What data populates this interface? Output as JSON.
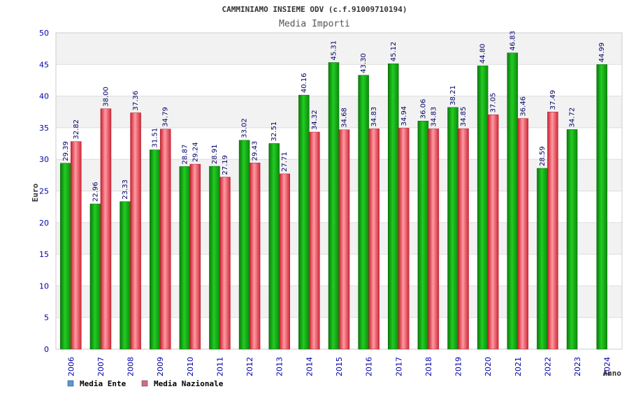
{
  "chart_data": {
    "type": "bar",
    "title": "CAMMINIAMO INSIEME ODV (c.f.91009710194)",
    "subtitle": "Media Importi",
    "xlabel": "Anno",
    "ylabel": "Euro",
    "ylim": [
      0,
      50
    ],
    "yticks": [
      0,
      5,
      10,
      15,
      20,
      25,
      30,
      35,
      40,
      45,
      50
    ],
    "grid": true,
    "legend_position": "bottom-left",
    "categories": [
      "2006",
      "2007",
      "2008",
      "2009",
      "2010",
      "2011",
      "2012",
      "2013",
      "2014",
      "2015",
      "2016",
      "2017",
      "2018",
      "2019",
      "2020",
      "2021",
      "2022",
      "2023",
      "2024"
    ],
    "series": [
      {
        "name": "Media Ente",
        "color": "#1aaa1a",
        "legend_color": "#5599dd",
        "values": [
          29.39,
          22.96,
          23.33,
          31.51,
          28.87,
          28.91,
          33.02,
          32.51,
          40.16,
          45.31,
          43.3,
          45.12,
          36.06,
          38.21,
          44.8,
          46.83,
          28.59,
          34.72,
          44.99
        ],
        "labels": [
          "29.39",
          "22.96",
          "23.33",
          "31.51",
          "28.87",
          "28.91",
          "33.02",
          "32.51",
          "40.16",
          "45.31",
          "43.30",
          "45.12",
          "36.06",
          "38.21",
          "44.80",
          "46.83",
          "28.59",
          "34.72",
          "44.99"
        ]
      },
      {
        "name": "Media Nazionale",
        "color": "#e8404a",
        "legend_color": "#dd6688",
        "values": [
          32.82,
          38.0,
          37.36,
          34.79,
          29.24,
          27.19,
          29.43,
          27.71,
          34.32,
          34.68,
          34.83,
          34.94,
          34.83,
          34.85,
          37.05,
          36.46,
          37.49,
          null,
          null
        ],
        "labels": [
          "32.82",
          "38.00",
          "37.36",
          "34.79",
          "29.24",
          "27.19",
          "29.43",
          "27.71",
          "34.32",
          "34.68",
          "34.83",
          "34.94",
          "34.83",
          "34.85",
          "37.05",
          "36.46",
          "37.49",
          "",
          ""
        ]
      }
    ]
  }
}
